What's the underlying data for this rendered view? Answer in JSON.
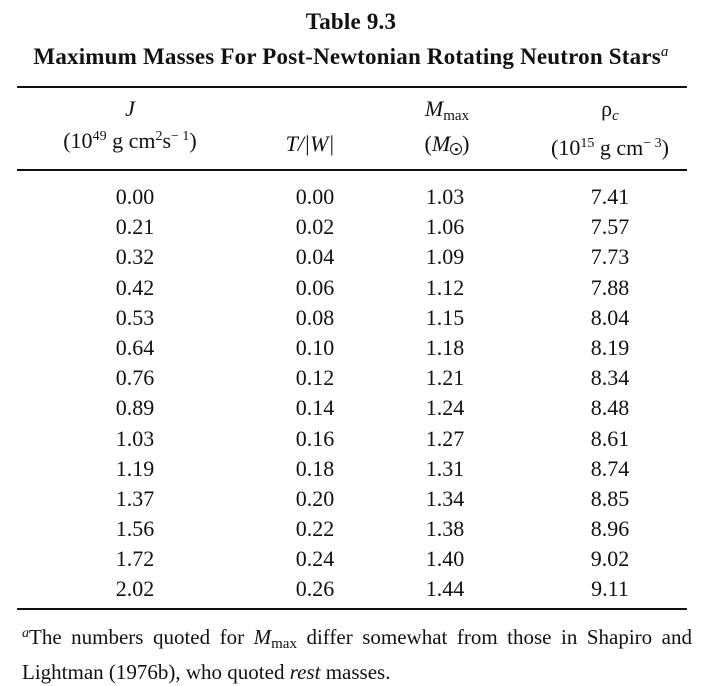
{
  "table": {
    "label": "Table 9.3",
    "title": "Maximum Masses For Post-Newtonian Rotating Neutron Stars",
    "title_footnote_mark": "a"
  },
  "columns": {
    "j": {
      "symbol": "J",
      "unit_pre": "(10",
      "unit_exp": "49",
      "unit_mid": " g cm",
      "unit_exp2": "2",
      "unit_mid2": "s",
      "unit_exp3": "− 1",
      "unit_post": ")"
    },
    "t": {
      "label": "T/|W|"
    },
    "m": {
      "symbol": "M",
      "subscript": "max",
      "unit_pre": "(",
      "unit_symbol": "M",
      "unit_post": ")"
    },
    "r": {
      "symbol": "ρ",
      "subscript": "c",
      "unit_pre": "(10",
      "unit_exp": "15",
      "unit_mid": " g cm",
      "unit_exp2": "− 3",
      "unit_post": ")"
    }
  },
  "rows": [
    [
      "0.00",
      "0.00",
      "1.03",
      "7.41"
    ],
    [
      "0.21",
      "0.02",
      "1.06",
      "7.57"
    ],
    [
      "0.32",
      "0.04",
      "1.09",
      "7.73"
    ],
    [
      "0.42",
      "0.06",
      "1.12",
      "7.88"
    ],
    [
      "0.53",
      "0.08",
      "1.15",
      "8.04"
    ],
    [
      "0.64",
      "0.10",
      "1.18",
      "8.19"
    ],
    [
      "0.76",
      "0.12",
      "1.21",
      "8.34"
    ],
    [
      "0.89",
      "0.14",
      "1.24",
      "8.48"
    ],
    [
      "1.03",
      "0.16",
      "1.27",
      "8.61"
    ],
    [
      "1.19",
      "0.18",
      "1.31",
      "8.74"
    ],
    [
      "1.37",
      "0.20",
      "1.34",
      "8.85"
    ],
    [
      "1.56",
      "0.22",
      "1.38",
      "8.96"
    ],
    [
      "1.72",
      "0.24",
      "1.40",
      "9.02"
    ],
    [
      "2.02",
      "0.26",
      "1.44",
      "9.11"
    ]
  ],
  "footnote": {
    "mark": "a",
    "text1": "The numbers quoted for ",
    "symbol": "M",
    "subscript": "max",
    "text2": " differ somewhat from those in Shapiro and Lightman (1976b), who quoted ",
    "emph": "rest",
    "text3": " masses."
  }
}
